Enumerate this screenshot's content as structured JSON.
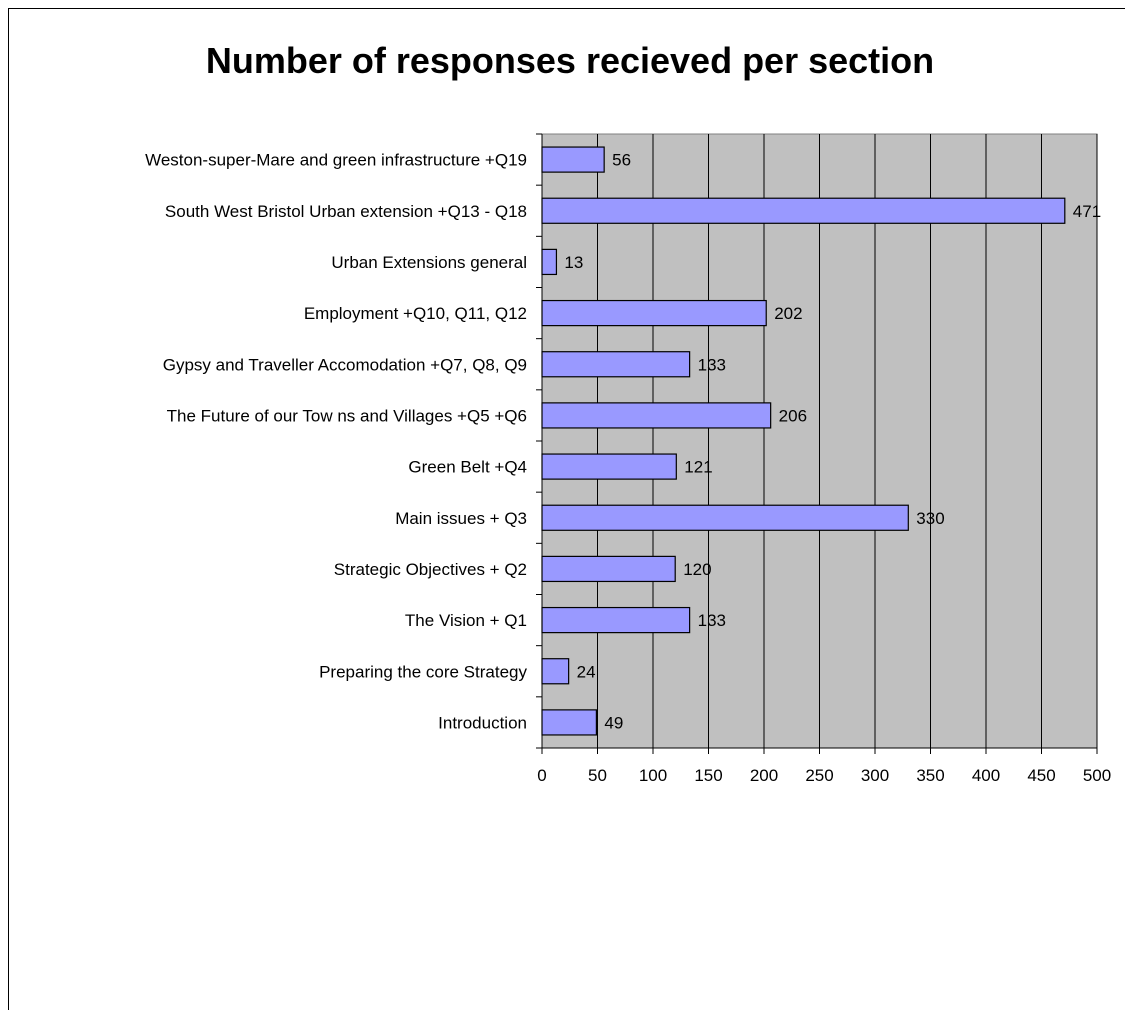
{
  "chart_data": {
    "type": "bar",
    "orientation": "horizontal",
    "title": "Number of responses recieved per section",
    "xlabel": "",
    "ylabel": "",
    "xlim": [
      0,
      500
    ],
    "x_ticks": [
      0,
      50,
      100,
      150,
      200,
      250,
      300,
      350,
      400,
      450,
      500
    ],
    "grid": true,
    "legend": "none",
    "categories": [
      "Weston-super-Mare and green infrastructure +Q19",
      "South West Bristol Urban extension +Q13 - Q18",
      "Urban Extensions general",
      "Employment +Q10, Q11, Q12",
      "Gypsy and Traveller Accomodation +Q7, Q8, Q9",
      "The Future of our Tow ns and Villages +Q5 +Q6",
      "Green Belt +Q4",
      "Main issues + Q3",
      "Strategic Objectives + Q2",
      "The Vision + Q1",
      "Preparing the core Strategy",
      "Introduction"
    ],
    "values": [
      56,
      471,
      13,
      202,
      133,
      206,
      121,
      330,
      120,
      133,
      24,
      49
    ],
    "colors": {
      "bar_fill": "#9999ff",
      "bar_stroke": "#000000",
      "plot_background": "#c0c0c0",
      "gridline": "#000000"
    }
  }
}
